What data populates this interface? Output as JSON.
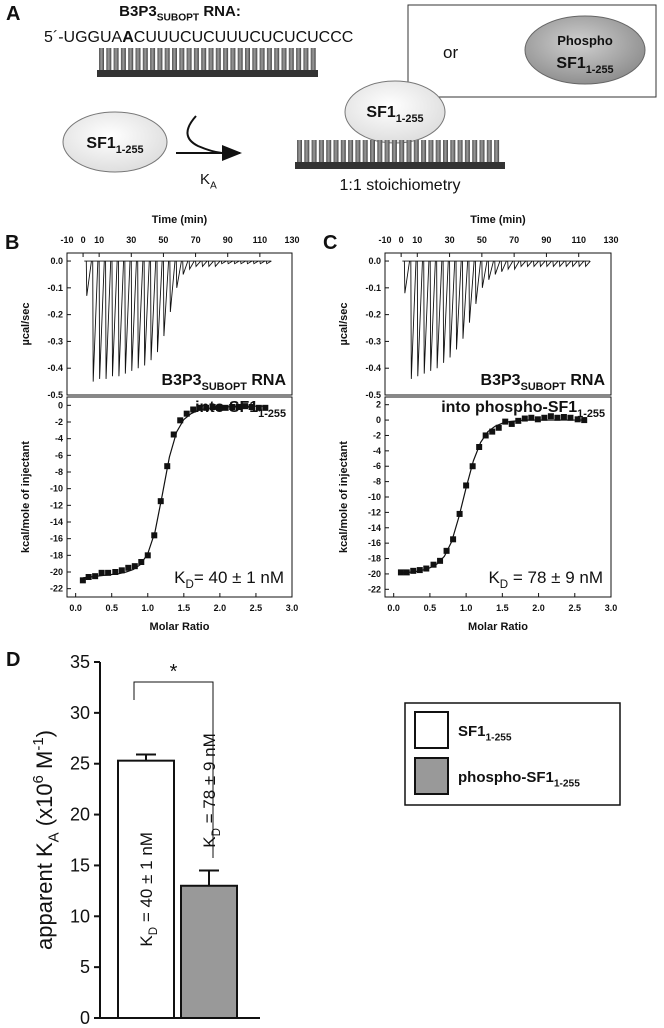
{
  "panel_a": {
    "label": "A",
    "rna_title": [
      "B3P3",
      {
        "text": "SUBOPT",
        "style": "sub"
      },
      " RNA:"
    ],
    "sequence": [
      "5´-UGGUA",
      {
        "text": "A",
        "style": "bold"
      },
      "CUUUCUCUUUCUCUCUCCC"
    ],
    "protein": [
      "SF1",
      {
        "text": "1-255",
        "style": "sub"
      }
    ],
    "rate_constant": [
      "K",
      {
        "text": "A",
        "style": "sub"
      }
    ],
    "bound_protein": [
      "SF1",
      {
        "text": "1-255",
        "style": "sub"
      }
    ],
    "stoichiometry": "1:1 stoichiometry",
    "or": "or",
    "phospho_protein": {
      "line1": "Phospho",
      "line2": [
        "SF1",
        {
          "text": "1-255",
          "style": "sub"
        }
      ]
    }
  },
  "chart_data": [
    {
      "type": "injections",
      "panel_label": "B",
      "x_label": "Time (min)",
      "y_label": "µcal/sec",
      "xlim": [
        -10,
        130
      ],
      "xticks": [
        -10,
        0,
        10,
        30,
        50,
        70,
        90,
        110,
        130
      ],
      "ylim": [
        -0.5,
        0.03
      ],
      "yticks": [
        {
          "value": 0,
          "label": "0.0"
        },
        -0.1,
        -0.2,
        -0.3,
        -0.4,
        -0.5
      ],
      "x": [
        2,
        6,
        10,
        14,
        18,
        22,
        26,
        30,
        34,
        38,
        42,
        46,
        50,
        54,
        58,
        62,
        66,
        70,
        74,
        78,
        82,
        86,
        90,
        94,
        98,
        102,
        106,
        110,
        114
      ],
      "values": [
        -0.13,
        -0.45,
        -0.44,
        -0.44,
        -0.43,
        -0.43,
        -0.42,
        -0.41,
        -0.4,
        -0.39,
        -0.37,
        -0.34,
        -0.28,
        -0.19,
        -0.1,
        -0.05,
        -0.03,
        -0.02,
        -0.02,
        -0.02,
        -0.02,
        -0.01,
        -0.01,
        -0.01,
        -0.01,
        -0.01,
        -0.01,
        -0.01,
        -0.01
      ],
      "annotation": [
        [
          "B3P3",
          {
            "text": "SUBOPT",
            "style": "sub"
          },
          " RNA"
        ],
        [
          "into SF1",
          {
            "text": "1-255",
            "style": "sub"
          }
        ]
      ]
    },
    {
      "type": "scatter",
      "x_label": "Molar Ratio",
      "y_label": "kcal/mole of injectant",
      "xlim": [
        -0.12,
        3.0
      ],
      "xticks": [
        {
          "value": 0,
          "label": "0.0"
        },
        0.5,
        {
          "value": 1,
          "label": "1.0"
        },
        1.5,
        {
          "value": 2,
          "label": "2.0"
        },
        2.5,
        {
          "value": 3,
          "label": "3.0"
        }
      ],
      "ylim": [
        -23,
        1
      ],
      "yticks": [
        0,
        -2,
        -4,
        -6,
        -8,
        -10,
        -12,
        -14,
        -16,
        -18,
        -20,
        -22
      ],
      "series": [
        {
          "style": "markers",
          "color": "#111111",
          "x": [
            0.1,
            0.18,
            0.27,
            0.36,
            0.45,
            0.55,
            0.64,
            0.73,
            0.82,
            0.91,
            1.0,
            1.09,
            1.18,
            1.27,
            1.36,
            1.45,
            1.54,
            1.63,
            1.72,
            1.81,
            1.9,
            1.99,
            2.08,
            2.17,
            2.26,
            2.35,
            2.44,
            2.54,
            2.63
          ],
          "values": [
            -21,
            -20.6,
            -20.5,
            -20.1,
            -20.1,
            -20,
            -19.8,
            -19.5,
            -19.3,
            -18.8,
            -18,
            -15.6,
            -11.5,
            -7.3,
            -3.5,
            -1.8,
            -1,
            -0.5,
            -0.3,
            -0.3,
            -0.2,
            -0.3,
            -0.3,
            -0.2,
            -0.2,
            -0.1,
            -0.2,
            -0.3,
            -0.3
          ]
        },
        {
          "style": "line",
          "color": "#111111",
          "x": [
            0.1,
            0.2,
            0.3,
            0.4,
            0.5,
            0.6,
            0.7,
            0.8,
            0.9,
            1.0,
            1.1,
            1.2,
            1.3,
            1.4,
            1.5,
            1.6,
            1.7,
            1.8,
            1.9,
            2.0,
            2.1,
            2.2,
            2.3,
            2.4,
            2.5,
            2.6
          ],
          "values": [
            -20.7,
            -20.6,
            -20.5,
            -20.4,
            -20.3,
            -20.2,
            -20.0,
            -19.7,
            -19.1,
            -17.8,
            -15.2,
            -10.8,
            -6.2,
            -3.2,
            -1.7,
            -1.0,
            -0.6,
            -0.4,
            -0.3,
            -0.2,
            -0.2,
            -0.1,
            -0.1,
            -0.1,
            -0.1,
            -0.1
          ]
        }
      ],
      "annotation": [
        "K",
        {
          "text": "D",
          "style": "sub"
        },
        "= 40 ± 1 nM"
      ]
    },
    {
      "type": "injections",
      "panel_label": "C",
      "x_label": "Time (min)",
      "y_label": "µcal/sec",
      "xlim": [
        -10,
        130
      ],
      "xticks": [
        -10,
        0,
        10,
        30,
        50,
        70,
        90,
        110,
        130
      ],
      "ylim": [
        -0.5,
        0.03
      ],
      "yticks": [
        {
          "value": 0,
          "label": "0.0"
        },
        -0.1,
        -0.2,
        -0.3,
        -0.4,
        -0.5
      ],
      "x": [
        2,
        6,
        10,
        14,
        18,
        22,
        26,
        30,
        34,
        38,
        42,
        46,
        50,
        54,
        58,
        62,
        66,
        70,
        74,
        78,
        82,
        86,
        90,
        94,
        98,
        102,
        106,
        110,
        114
      ],
      "values": [
        -0.12,
        -0.44,
        -0.43,
        -0.42,
        -0.41,
        -0.4,
        -0.38,
        -0.36,
        -0.33,
        -0.29,
        -0.23,
        -0.16,
        -0.1,
        -0.07,
        -0.05,
        -0.04,
        -0.03,
        -0.03,
        -0.02,
        -0.02,
        -0.02,
        -0.02,
        -0.02,
        -0.02,
        -0.02,
        -0.02,
        -0.02,
        -0.02,
        -0.02
      ],
      "annotation": [
        [
          "B3P3",
          {
            "text": "SUBOPT",
            "style": "sub"
          },
          " RNA"
        ],
        [
          "into phospho-SF1",
          {
            "text": "1-255",
            "style": "sub"
          }
        ]
      ]
    },
    {
      "type": "scatter",
      "x_label": "Molar Ratio",
      "y_label": "kcal/mole of injectant",
      "xlim": [
        -0.12,
        3.0
      ],
      "xticks": [
        {
          "value": 0,
          "label": "0.0"
        },
        0.5,
        {
          "value": 1,
          "label": "1.0"
        },
        1.5,
        {
          "value": 2,
          "label": "2.0"
        },
        2.5,
        {
          "value": 3,
          "label": "3.0"
        }
      ],
      "ylim": [
        -23,
        3
      ],
      "yticks": [
        2,
        0,
        -2,
        -4,
        -6,
        -8,
        -10,
        -12,
        -14,
        -16,
        -18,
        -20,
        -22
      ],
      "series": [
        {
          "style": "markers",
          "color": "#111111",
          "x": [
            0.1,
            0.18,
            0.27,
            0.36,
            0.45,
            0.55,
            0.64,
            0.73,
            0.82,
            0.91,
            1.0,
            1.09,
            1.18,
            1.27,
            1.36,
            1.45,
            1.54,
            1.63,
            1.72,
            1.81,
            1.9,
            1.99,
            2.08,
            2.17,
            2.26,
            2.35,
            2.44,
            2.54,
            2.63
          ],
          "values": [
            -19.8,
            -19.8,
            -19.6,
            -19.5,
            -19.3,
            -18.8,
            -18.3,
            -17,
            -15.5,
            -12.2,
            -8.5,
            -6,
            -3.5,
            -2,
            -1.5,
            -1,
            -0.2,
            -0.5,
            -0.1,
            0.2,
            0.3,
            0.1,
            0.3,
            0.5,
            0.3,
            0.4,
            0.3,
            0.1,
            0
          ]
        },
        {
          "style": "line",
          "color": "#111111",
          "x": [
            0.1,
            0.2,
            0.3,
            0.4,
            0.5,
            0.6,
            0.7,
            0.8,
            0.9,
            1.0,
            1.1,
            1.2,
            1.3,
            1.4,
            1.5,
            1.6,
            1.7,
            1.8,
            1.9,
            2.0,
            2.1,
            2.2,
            2.3,
            2.4,
            2.5,
            2.6
          ],
          "values": [
            -19.9,
            -19.8,
            -19.7,
            -19.5,
            -19.2,
            -18.7,
            -17.7,
            -15.8,
            -12.6,
            -8.8,
            -5.3,
            -2.9,
            -1.5,
            -0.8,
            -0.4,
            -0.2,
            -0.1,
            0,
            0,
            0,
            0,
            0,
            0,
            0,
            0,
            0
          ]
        }
      ],
      "annotation": [
        "K",
        {
          "text": "D",
          "style": "sub"
        },
        " = 78 ± 9 nM"
      ]
    },
    {
      "type": "bar",
      "panel_label": "D",
      "y_label": [
        "apparent K",
        {
          "text": "A",
          "style": "sub"
        },
        " (x10",
        {
          "text": "6",
          "style": "sup"
        },
        " M",
        {
          "text": "-1",
          "style": "sup"
        },
        ")"
      ],
      "ylim": [
        0,
        35
      ],
      "yticks": [
        0,
        5,
        10,
        15,
        20,
        25,
        30,
        35
      ],
      "series": [
        {
          "name": [
            "SF1",
            {
              "text": "1-255",
              "style": "sub"
            }
          ],
          "color": "#ffffff",
          "values": [
            25.3
          ],
          "errors": [
            0.6
          ],
          "bar_label": [
            "K",
            {
              "text": "D",
              "style": "sub"
            },
            " = 40 ± 1 nM"
          ]
        },
        {
          "name": [
            "phospho-SF1",
            {
              "text": "1-255",
              "style": "sub"
            }
          ],
          "color": "#999999",
          "values": [
            13.0
          ],
          "errors": [
            1.5
          ],
          "bar_label": [
            "K",
            {
              "text": "D",
              "style": "sub"
            },
            " = 78 ± 9 nM"
          ]
        }
      ],
      "significance": "*"
    }
  ]
}
